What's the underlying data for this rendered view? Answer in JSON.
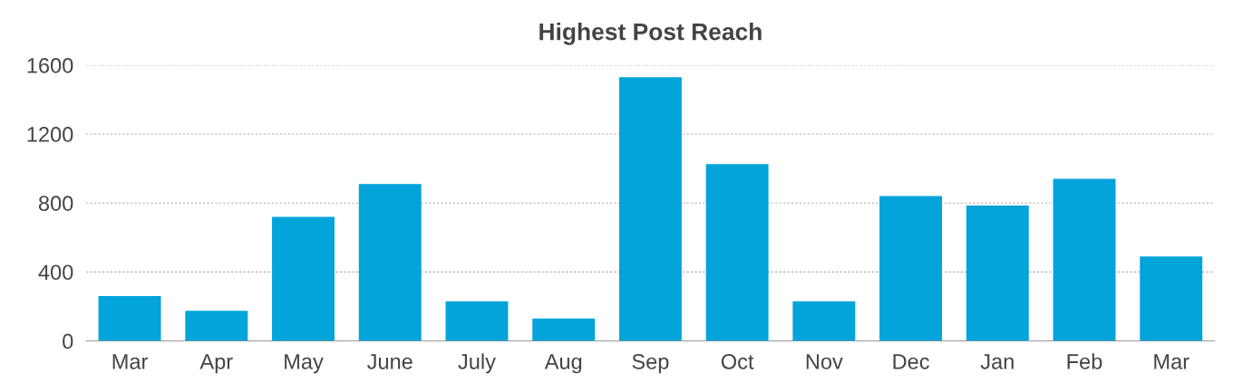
{
  "chart_data": {
    "type": "bar",
    "title": "Highest Post Reach",
    "categories": [
      "Mar",
      "Apr",
      "May",
      "June",
      "July",
      "Aug",
      "Sep",
      "Oct",
      "Nov",
      "Dec",
      "Jan",
      "Feb",
      "Mar"
    ],
    "values": [
      260,
      175,
      720,
      910,
      230,
      130,
      1530,
      1025,
      230,
      840,
      785,
      940,
      490
    ],
    "color": "#02a4d9",
    "ylim": [
      0,
      1600
    ],
    "yticks": [
      0,
      400,
      800,
      1200,
      1600
    ],
    "grid": "y",
    "legend": false
  }
}
